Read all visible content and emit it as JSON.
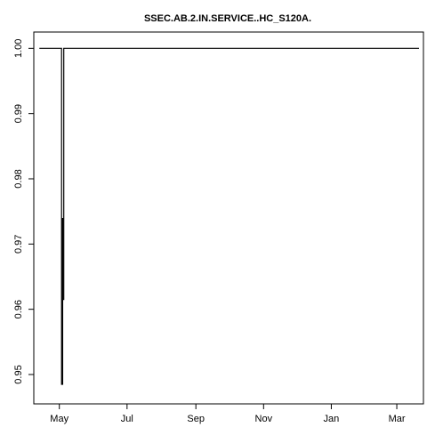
{
  "chart_data": {
    "type": "line",
    "title": "SSEC.AB.2.IN.SERVICE..HC_S120A.",
    "xlabel": "",
    "ylabel": "",
    "x_ticks": [
      "May",
      "Jul",
      "Sep",
      "Nov",
      "Jan",
      "Mar"
    ],
    "y_ticks": [
      "0.95",
      "0.96",
      "0.97",
      "0.98",
      "0.99",
      "1.00"
    ],
    "ylim": [
      0.9455,
      1.0025
    ],
    "xlim": [
      "2012-04-08",
      "2013-03-25"
    ],
    "grid": false,
    "legend": "none",
    "line_color": "#000000",
    "series": [
      {
        "x": [
          "2012-04-13",
          "2012-05-03",
          "2012-05-03",
          "2012-05-04",
          "2012-05-04",
          "2012-05-04",
          "2012-05-05",
          "2012-05-05",
          "2012-05-05",
          "2012-05-06",
          "2012-05-06",
          "2013-03-21"
        ],
        "values": [
          1.0,
          1.0,
          0.9485,
          0.9485,
          0.974,
          0.9615,
          0.9615,
          0.987,
          1.0,
          1.0,
          1.0,
          1.0
        ]
      }
    ]
  }
}
